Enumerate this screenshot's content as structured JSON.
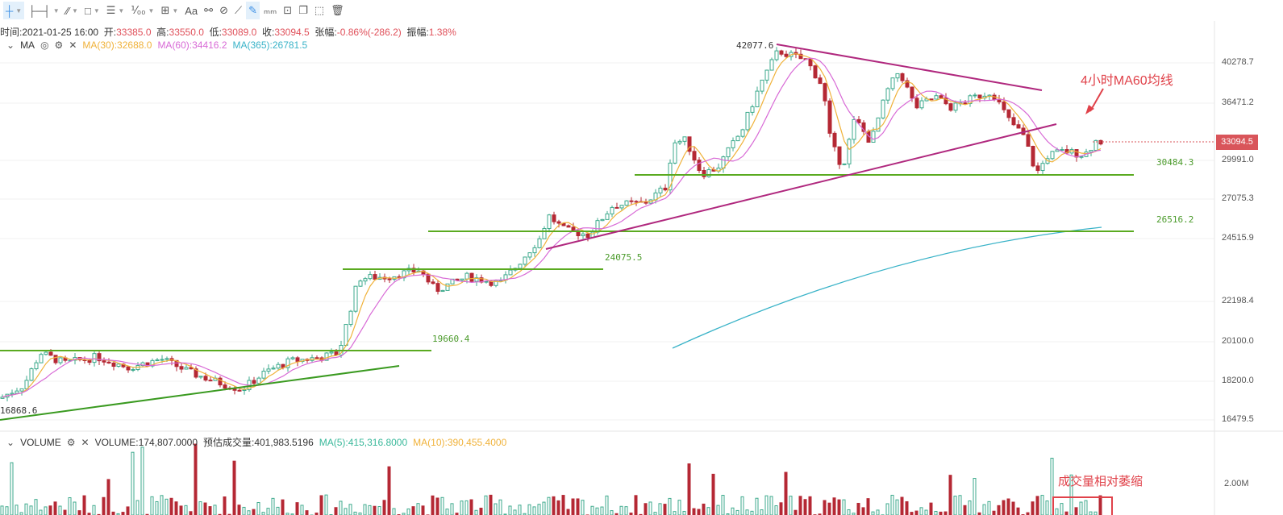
{
  "toolbar": {
    "items": [
      {
        "name": "crosshair-tool",
        "glyph": "┼",
        "caret": true,
        "active": true
      },
      {
        "name": "horizontal-line-tool",
        "glyph": "├─┤",
        "caret": true
      },
      {
        "name": "trend-line-tool",
        "glyph": "⁄⁄",
        "caret": true
      },
      {
        "name": "rectangle-tool",
        "glyph": "□",
        "caret": true
      },
      {
        "name": "fibonacci-tool",
        "glyph": "☰",
        "caret": true
      },
      {
        "name": "pattern-tool",
        "glyph": "⅟₀₀",
        "caret": true
      },
      {
        "name": "measure-tool",
        "glyph": "⊞",
        "caret": true
      },
      {
        "name": "text-tool",
        "glyph": "Aa"
      },
      {
        "name": "magnet-tool",
        "glyph": "⚯"
      },
      {
        "name": "link-tool",
        "glyph": "⊘"
      },
      {
        "name": "ruler-tool",
        "glyph": "⟋"
      },
      {
        "name": "draw-mode-tool",
        "glyph": "✎",
        "active": true
      },
      {
        "name": "candles-tool",
        "glyph": "ₘₘ"
      },
      {
        "name": "lock-tool",
        "glyph": "⊡"
      },
      {
        "name": "copy-tool",
        "glyph": "❐"
      },
      {
        "name": "hide-tool",
        "glyph": "⬚"
      },
      {
        "name": "delete-tool",
        "glyph": "🗑"
      }
    ]
  },
  "info": {
    "time_label": "时间:",
    "time": "2021-01-25 16:00",
    "open_label": "开:",
    "open": "33385.0",
    "high_label": "高:",
    "high": "33550.0",
    "low_label": "低:",
    "low": "33089.0",
    "close_label": "收:",
    "close": "33094.5",
    "change_label": "张幅:",
    "change": "-0.86%(-286.2)",
    "amp_label": "振幅:",
    "amp": "1.38%"
  },
  "ma": {
    "name": "MA",
    "ma30": "MA(30):32688.0",
    "ma60": "MA(60):34416.2",
    "ma365": "MA(365):26781.5"
  },
  "volume": {
    "name": "VOLUME",
    "value": "VOLUME:174,807.0000",
    "est": "预估成交量:401,983.5196",
    "ma5": "MA(5):415,316.8000",
    "ma10": "MA(10):390,455.4000",
    "axis": "2.00M"
  },
  "axis": {
    "prices": [
      "40278.7",
      "36471.2",
      "33094.5",
      "29991.0",
      "27075.3",
      "24515.9",
      "22198.4",
      "20100.0",
      "18200.0",
      "16479.5"
    ],
    "current": "33094.5"
  },
  "labels": {
    "high": "42077.6",
    "low": "16868.6",
    "levels": [
      "30484.3",
      "26516.2",
      "24075.5",
      "19660.4"
    ]
  },
  "annotations": {
    "ma60": "4小时MA60均线",
    "volume": "成交量相对萎缩"
  },
  "colors": {
    "up": "#3daa8c",
    "down": "#b52834",
    "ma30": "#f0b23a",
    "ma60": "#d86ad6",
    "ma365": "#3ab3c8",
    "support": "#5aaa20",
    "trend": "#b0287e"
  },
  "price_path": [
    [
      0,
      17400
    ],
    [
      30,
      18000
    ],
    [
      50,
      19500
    ],
    [
      80,
      19000
    ],
    [
      120,
      19300
    ],
    [
      160,
      18800
    ],
    [
      200,
      19200
    ],
    [
      240,
      18500
    ],
    [
      280,
      18000
    ],
    [
      300,
      17800
    ],
    [
      330,
      18600
    ],
    [
      360,
      19100
    ],
    [
      400,
      19300
    ],
    [
      420,
      19500
    ],
    [
      430,
      21000
    ],
    [
      445,
      23500
    ],
    [
      480,
      23600
    ],
    [
      520,
      24000
    ],
    [
      540,
      22800
    ],
    [
      580,
      23600
    ],
    [
      620,
      23200
    ],
    [
      640,
      24200
    ],
    [
      670,
      26000
    ],
    [
      680,
      27500
    ],
    [
      700,
      26500
    ],
    [
      730,
      26200
    ],
    [
      760,
      28200
    ],
    [
      800,
      28400
    ],
    [
      825,
      29500
    ],
    [
      835,
      33000
    ],
    [
      850,
      33200
    ],
    [
      870,
      30500
    ],
    [
      890,
      31000
    ],
    [
      920,
      34000
    ],
    [
      945,
      38500
    ],
    [
      965,
      41500
    ],
    [
      1000,
      40500
    ],
    [
      1020,
      38000
    ],
    [
      1030,
      33000
    ],
    [
      1045,
      31000
    ],
    [
      1060,
      35000
    ],
    [
      1080,
      33000
    ],
    [
      1100,
      37500
    ],
    [
      1115,
      39500
    ],
    [
      1135,
      36000
    ],
    [
      1160,
      37000
    ],
    [
      1180,
      36000
    ],
    [
      1210,
      37000
    ],
    [
      1230,
      37500
    ],
    [
      1250,
      35000
    ],
    [
      1270,
      33500
    ],
    [
      1285,
      30500
    ],
    [
      1300,
      32000
    ],
    [
      1320,
      32300
    ],
    [
      1345,
      32000
    ],
    [
      1360,
      33200
    ],
    [
      1365,
      33094
    ]
  ]
}
